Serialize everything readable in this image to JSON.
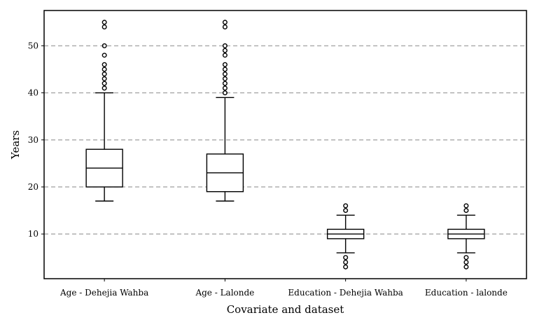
{
  "chart_data": {
    "type": "box",
    "xlabel": "Covariate and dataset",
    "ylabel": "Years",
    "ylim": [
      0.5,
      57.5
    ],
    "yticks": [
      10,
      20,
      30,
      40,
      50
    ],
    "grid": "horizontal dashed",
    "categories": [
      "Age - Dehejia Wahba",
      "Age - Lalonde",
      "Education - Dehejia Wahba",
      "Education - lalonde"
    ],
    "boxes": [
      {
        "whisker_low": 17,
        "q1": 20,
        "median": 24,
        "q3": 28,
        "whisker_high": 40,
        "outliers": [
          41,
          42,
          43,
          44,
          45,
          46,
          48,
          50,
          54,
          55
        ]
      },
      {
        "whisker_low": 17,
        "q1": 19,
        "median": 23,
        "q3": 27,
        "whisker_high": 39,
        "outliers": [
          40,
          41,
          42,
          43,
          44,
          45,
          46,
          48,
          49,
          50,
          54,
          55
        ]
      },
      {
        "whisker_low": 6,
        "q1": 9,
        "median": 10,
        "q3": 11,
        "whisker_high": 14,
        "outliers": [
          3,
          4,
          5,
          15,
          16
        ]
      },
      {
        "whisker_low": 6,
        "q1": 9,
        "median": 10,
        "q3": 11,
        "whisker_high": 14,
        "outliers": [
          3,
          4,
          5,
          15,
          16
        ]
      }
    ],
    "colors": {
      "box": "#000000",
      "grid": "#a8a8a8",
      "background": "#ffffff"
    }
  }
}
